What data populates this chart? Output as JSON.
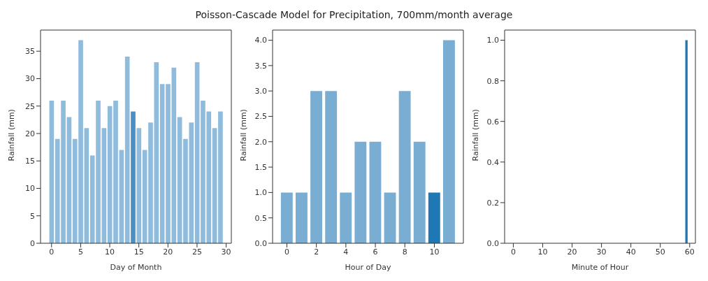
{
  "chart_data": [
    {
      "type": "bar",
      "xlabel": "Day of Month",
      "ylabel": "Rainfall (mm)",
      "x": [
        0,
        1,
        2,
        3,
        4,
        5,
        6,
        7,
        8,
        9,
        10,
        11,
        12,
        13,
        14,
        15,
        16,
        17,
        18,
        19,
        20,
        21,
        22,
        23,
        24,
        25,
        26,
        27,
        28,
        29
      ],
      "values": [
        26,
        19,
        26,
        23,
        19,
        37,
        21,
        16,
        26,
        21,
        25,
        26,
        17,
        34,
        24,
        21,
        17,
        22,
        33,
        29,
        29,
        32,
        23,
        19,
        22,
        33,
        26,
        24,
        21,
        24
      ],
      "colors": [
        "#8fbbdc",
        "#8fbbdc",
        "#8fbbdc",
        "#8fbbdc",
        "#8fbbdc",
        "#8fbbdc",
        "#8fbbdc",
        "#8fbbdc",
        "#8fbbdc",
        "#8fbbdc",
        "#8fbbdc",
        "#8fbbdc",
        "#8fbbdc",
        "#8fbbdc",
        "#4a90c2",
        "#8fbbdc",
        "#8fbbdc",
        "#8fbbdc",
        "#8fbbdc",
        "#8fbbdc",
        "#8fbbdc",
        "#8fbbdc",
        "#8fbbdc",
        "#8fbbdc",
        "#8fbbdc",
        "#8fbbdc",
        "#8fbbdc",
        "#8fbbdc",
        "#8fbbdc",
        "#8fbbdc"
      ],
      "xlim": [
        -1.89,
        30.89
      ],
      "xticks": [
        0,
        5,
        10,
        15,
        20,
        25,
        30
      ],
      "ylim": [
        0,
        38.85
      ],
      "yticks": [
        0,
        5,
        10,
        15,
        20,
        25,
        30,
        35
      ],
      "grid": false,
      "legend": false
    },
    {
      "type": "bar",
      "title": "Poisson-Cascade Model for Precipitation, 700mm/month average",
      "xlabel": "Hour of Day",
      "ylabel": "Rainfall (mm)",
      "x": [
        0,
        1,
        2,
        3,
        4,
        5,
        6,
        7,
        8,
        9,
        10,
        11
      ],
      "values": [
        1,
        1,
        3,
        3,
        1,
        2,
        2,
        1,
        3,
        2,
        1,
        4
      ],
      "colors": [
        "#79add2",
        "#79add2",
        "#79add2",
        "#79add2",
        "#79add2",
        "#79add2",
        "#79add2",
        "#79add2",
        "#79add2",
        "#79add2",
        "#1f77b4",
        "#79add2"
      ],
      "xlim": [
        -0.97,
        11.97
      ],
      "xticks": [
        0,
        2,
        4,
        6,
        8,
        10
      ],
      "ylim": [
        0,
        4.2
      ],
      "yticks": [
        {
          "value": 0,
          "label": "0.0"
        },
        {
          "value": 0.5,
          "label": "0.5"
        },
        {
          "value": 1,
          "label": "1.0"
        },
        {
          "value": 1.5,
          "label": "1.5"
        },
        {
          "value": 2,
          "label": "2.0"
        },
        {
          "value": 2.5,
          "label": "2.5"
        },
        {
          "value": 3,
          "label": "3.0"
        },
        {
          "value": 3.5,
          "label": "3.5"
        },
        {
          "value": 4,
          "label": "4.0"
        }
      ],
      "grid": false,
      "legend": false
    },
    {
      "type": "bar",
      "xlabel": "Minute of Hour",
      "ylabel": "Rainfall (mm)",
      "x": [
        0,
        1,
        2,
        3,
        4,
        5,
        6,
        7,
        8,
        9,
        10,
        11,
        12,
        13,
        14,
        15,
        16,
        17,
        18,
        19,
        20,
        21,
        22,
        23,
        24,
        25,
        26,
        27,
        28,
        29,
        30,
        31,
        32,
        33,
        34,
        35,
        36,
        37,
        38,
        39,
        40,
        41,
        42,
        43,
        44,
        45,
        46,
        47,
        48,
        49,
        50,
        51,
        52,
        53,
        54,
        55,
        56,
        57,
        58,
        59
      ],
      "values": [
        0,
        0,
        0,
        0,
        0,
        0,
        0,
        0,
        0,
        0,
        0,
        0,
        0,
        0,
        0,
        0,
        0,
        0,
        0,
        0,
        0,
        0,
        0,
        0,
        0,
        0,
        0,
        0,
        0,
        0,
        0,
        0,
        0,
        0,
        0,
        0,
        0,
        0,
        0,
        0,
        0,
        0,
        0,
        0,
        0,
        0,
        0,
        0,
        0,
        0,
        0,
        0,
        0,
        0,
        0,
        0,
        0,
        0,
        0,
        1
      ],
      "color": "#1f77b4",
      "xlim": [
        -2.95,
        61.95
      ],
      "xticks": [
        0,
        10,
        20,
        30,
        40,
        50,
        60
      ],
      "ylim": [
        0,
        1.05
      ],
      "yticks": [
        {
          "value": 0,
          "label": "0.0"
        },
        {
          "value": 0.2,
          "label": "0.2"
        },
        {
          "value": 0.4,
          "label": "0.4"
        },
        {
          "value": 0.6,
          "label": "0.6"
        },
        {
          "value": 0.8,
          "label": "0.8"
        },
        {
          "value": 1,
          "label": "1.0"
        }
      ],
      "grid": false,
      "legend": false
    }
  ]
}
